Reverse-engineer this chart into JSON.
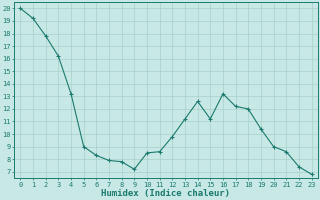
{
  "x": [
    0,
    1,
    2,
    3,
    4,
    5,
    6,
    7,
    8,
    9,
    10,
    11,
    12,
    13,
    14,
    15,
    16,
    17,
    18,
    19,
    20,
    21,
    22,
    23
  ],
  "y": [
    20.0,
    19.2,
    17.8,
    16.2,
    13.2,
    9.0,
    8.3,
    7.9,
    7.8,
    7.2,
    8.5,
    8.6,
    9.8,
    11.2,
    12.6,
    11.2,
    13.2,
    12.2,
    12.0,
    10.4,
    9.0,
    8.6,
    7.4,
    6.8
  ],
  "xlim": [
    -0.5,
    23.5
  ],
  "ylim": [
    6.5,
    20.5
  ],
  "xticks": [
    0,
    1,
    2,
    3,
    4,
    5,
    6,
    7,
    8,
    9,
    10,
    11,
    12,
    13,
    14,
    15,
    16,
    17,
    18,
    19,
    20,
    21,
    22,
    23
  ],
  "yticks": [
    7,
    8,
    9,
    10,
    11,
    12,
    13,
    14,
    15,
    16,
    17,
    18,
    19,
    20
  ],
  "xlabel": "Humidex (Indice chaleur)",
  "line_color": "#1a7a6e",
  "marker": "+",
  "bg_color": "#c8e8e5",
  "grid_color": "#a8d0cc",
  "tick_label_fontsize": 5.0,
  "xlabel_fontsize": 6.5
}
